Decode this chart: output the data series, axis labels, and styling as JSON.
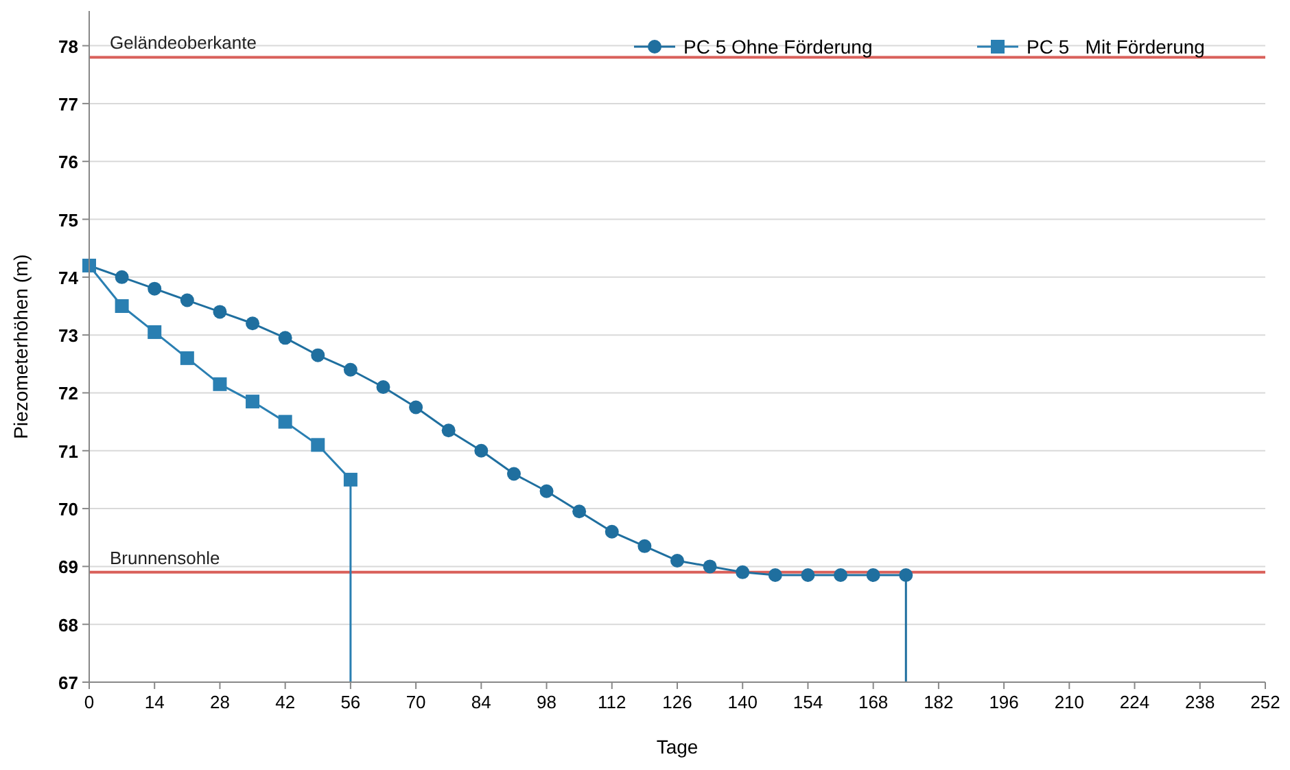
{
  "chart_data": {
    "type": "line",
    "xlabel": "Tage",
    "ylabel": "Piezometerhöhen (m)",
    "xlim": [
      0,
      252
    ],
    "xticks": [
      0,
      14,
      28,
      42,
      56,
      70,
      84,
      98,
      112,
      126,
      140,
      154,
      168,
      182,
      196,
      210,
      224,
      238,
      252
    ],
    "ylim": [
      67,
      78.6
    ],
    "yticks": [
      67,
      68,
      69,
      70,
      71,
      72,
      73,
      74,
      75,
      76,
      77,
      78
    ],
    "grid": "y",
    "legend": "top right",
    "line_style": "solid",
    "series": [
      {
        "name": "PC 5 Ohne Förderung",
        "color": "#1f6f9f",
        "marker": "circle",
        "x": [
          0,
          7,
          14,
          21,
          28,
          35,
          42,
          49,
          56,
          63,
          70,
          77,
          84,
          91,
          98,
          105,
          112,
          119,
          126,
          133,
          140,
          147,
          154,
          161,
          168,
          175
        ],
        "values": [
          74.2,
          74.0,
          73.8,
          73.6,
          73.4,
          73.2,
          72.95,
          72.65,
          72.4,
          72.1,
          71.75,
          71.35,
          71.0,
          70.6,
          70.3,
          69.95,
          69.6,
          69.35,
          69.1,
          69.0,
          68.9,
          68.85,
          68.85,
          68.85,
          68.85,
          68.85
        ]
      },
      {
        "color": "#1f6f9f",
        "marker": "none",
        "x": [
          175,
          175
        ],
        "values": [
          68.85,
          67
        ]
      },
      {
        "name": "PC 5   Mit Förderung",
        "color": "#2a7fb2",
        "marker": "square",
        "x": [
          0,
          7,
          14,
          21,
          28,
          35,
          42,
          49,
          56
        ],
        "values": [
          74.2,
          73.5,
          73.05,
          72.6,
          72.15,
          71.85,
          71.5,
          71.1,
          70.5
        ]
      },
      {
        "color": "#2a7fb2",
        "marker": "none",
        "x": [
          56,
          56
        ],
        "values": [
          70.5,
          67
        ]
      }
    ],
    "ref_lines": [
      {
        "axis": "y",
        "value": 77.8,
        "label": "Geländeoberkante",
        "color": "#d9605a"
      },
      {
        "axis": "y",
        "value": 68.9,
        "label": "Brunnensohle",
        "color": "#d9605a"
      }
    ]
  }
}
